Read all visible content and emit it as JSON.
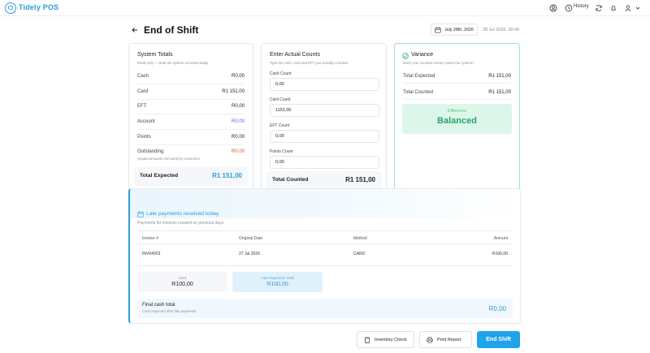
{
  "app": {
    "brand": "Tidely POS"
  },
  "topbar": {
    "history_label": "History"
  },
  "header": {
    "title": "End of Shift",
    "date": "July 28th, 2026",
    "timestamp": "28 Jul 2026, 09:45"
  },
  "system_totals": {
    "title": "System Totals",
    "subtitle": "Read-only — what the system recorded today.",
    "rows": [
      {
        "label": "Cash",
        "value": "R0,00"
      },
      {
        "label": "Card",
        "value": "R1 151,00"
      },
      {
        "label": "EFT",
        "value": "R0,00"
      },
      {
        "label": "Account",
        "value": "R0,00"
      },
      {
        "label": "Points",
        "value": "R0,00"
      },
      {
        "label": "Outstanding",
        "value": "R0,00"
      }
    ],
    "outstanding_note": "Unpaid amounts still owed by customers",
    "total_label": "Total Expected",
    "total_value": "R1 151,00"
  },
  "actual_counts": {
    "title": "Enter Actual Counts",
    "subtitle": "Type the cash, card and EFT you actually counted.",
    "fields": [
      {
        "label": "Cash Count",
        "value": "0,00"
      },
      {
        "label": "Card Count",
        "value": "1151,00"
      },
      {
        "label": "EFT Count",
        "value": "0,00"
      },
      {
        "label": "Points Count",
        "value": "0,00"
      }
    ],
    "total_label": "Total Counted",
    "total_value": "R1 151,00"
  },
  "variance": {
    "title": "Variance",
    "subtitle": "Does your counted money match the system?",
    "rows": [
      {
        "label": "Total Expected",
        "value": "R1 151,00"
      },
      {
        "label": "Total Counted",
        "value": "R1 151,00"
      }
    ],
    "difference_label": "Difference",
    "status": "Balanced"
  },
  "late_payments": {
    "title": "Late payments received today",
    "subtitle": "Payments for invoices created on previous days",
    "columns": [
      "Invoice #",
      "Original Date",
      "Method",
      "Amount"
    ],
    "rows": [
      {
        "invoice": "INV04023",
        "date": "27 Jul 2026",
        "method": "CARD",
        "amount": "R100,00"
      }
    ],
    "stats": [
      {
        "label": "Card",
        "value": "R100,00"
      },
      {
        "label": "Late Payments Total",
        "value": "R100,00"
      }
    ],
    "final_label": "Final cash total",
    "final_sub": "Cash expected after late payments",
    "final_value": "R0,00"
  },
  "actions": {
    "inventory_check": "Inventory Check",
    "print_report": "Print Report",
    "end_shift": "End Shift"
  },
  "colors": {
    "accent": "#2d9cdb",
    "success": "#29a56c",
    "account": "#6c5ce7",
    "outstanding": "#d35a3a"
  }
}
